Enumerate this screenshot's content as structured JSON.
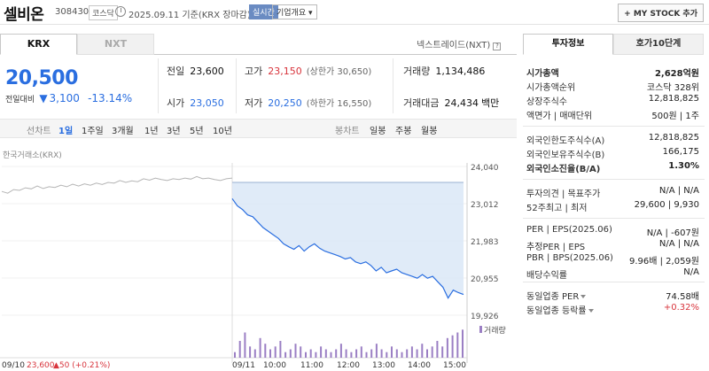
{
  "header": {
    "company": "셀비온",
    "code": "308430",
    "market": "코스닥",
    "date": "2025.09.11 기준(KRX 장마감)",
    "realtime": "실시간",
    "overview": "기업개요 ▾",
    "mystock": "+ MY STOCK 추가"
  },
  "tabs": {
    "krx": "KRX",
    "nxt": "NXT",
    "nxt_info": "넥스트레이드(NXT)"
  },
  "quote": {
    "price": "20,500",
    "change_label": "전일대비",
    "change_arrow": "▼",
    "change_value": "3,100",
    "change_pct": "-13.14%"
  },
  "stats": {
    "prev_label": "전일",
    "prev": "23,600",
    "high_label": "고가",
    "high": "23,150",
    "upper_limit": "(상한가 30,650)",
    "volume_label": "거래량",
    "volume": "1,134,486",
    "open_label": "시가",
    "open": "23,050",
    "low_label": "저가",
    "low": "20,250",
    "lower_limit": "(하한가 16,550)",
    "amount_label": "거래대금",
    "amount": "24,434",
    "amount_unit": "백만"
  },
  "periods": {
    "line_chart": "선차트",
    "items": [
      "1일",
      "1주일",
      "3개월",
      "1년",
      "3년",
      "5년",
      "10년"
    ],
    "candle": "봉차트",
    "candle_items": [
      "일봉",
      "주봉",
      "월봉"
    ]
  },
  "chart_exchange": "한국거래소(KRX)",
  "chart_data": {
    "type": "line",
    "y_ticks": [
      "24,040",
      "23,012",
      "21,983",
      "20,955",
      "19,926"
    ],
    "ylim": [
      19926,
      24040
    ],
    "prev_close": 23600,
    "x_ticks": [
      "09/11",
      "10:00",
      "11:00",
      "12:00",
      "13:00",
      "14:00",
      "15:00"
    ],
    "prev_day_label": "09/10",
    "prev_day_value": "23,600",
    "prev_day_change": "▲50 (+0.21%)",
    "volume_label": "거래량",
    "prev_series": [
      23350,
      23300,
      23400,
      23380,
      23450,
      23420,
      23500,
      23430,
      23480,
      23460,
      23520,
      23480,
      23550,
      23500,
      23560,
      23520,
      23580,
      23540,
      23600,
      23580,
      23650,
      23600,
      23640,
      23620,
      23700,
      23660,
      23720,
      23680,
      23650,
      23700,
      23680,
      23720,
      23690,
      23760,
      23700,
      23720,
      23680,
      23650,
      23700,
      23720
    ],
    "series": [
      23150,
      22950,
      22850,
      22700,
      22650,
      22500,
      22350,
      22250,
      22150,
      22050,
      21900,
      21820,
      21750,
      21850,
      21700,
      21820,
      21900,
      21780,
      21700,
      21650,
      21600,
      21550,
      21480,
      21520,
      21400,
      21350,
      21400,
      21300,
      21150,
      21250,
      21100,
      21150,
      21200,
      21100,
      21050,
      21000,
      20950,
      21050,
      20950,
      21000,
      20850,
      20700,
      20400,
      20620,
      20550,
      20500
    ],
    "volumes": [
      2,
      6,
      9,
      4,
      3,
      7,
      5,
      3,
      4,
      6,
      2,
      3,
      5,
      4,
      2,
      3,
      2,
      4,
      3,
      2,
      3,
      5,
      3,
      2,
      3,
      4,
      2,
      3,
      5,
      3,
      2,
      4,
      3,
      2,
      3,
      4,
      3,
      5,
      3,
      4,
      6,
      4,
      7,
      8,
      9,
      10
    ]
  },
  "right": {
    "tab_active": "투자정보",
    "tab_inactive": "호가10단계",
    "rows1": [
      {
        "k": "시가총액",
        "v": "2,628억원",
        "bold": true
      },
      {
        "k": "시가총액순위",
        "v": "코스닥 328위"
      },
      {
        "k": "상장주식수",
        "v": "12,818,825"
      },
      {
        "k": "액면가 | 매매단위",
        "v": "500원 | 1주"
      }
    ],
    "rows2": [
      {
        "k": "외국인한도주식수(A)",
        "v": "12,818,825"
      },
      {
        "k": "외국인보유주식수(B)",
        "v": "166,175"
      },
      {
        "k": "외국인소진율(B/A)",
        "v": "1.30%",
        "bold": true
      }
    ],
    "rows3": [
      {
        "k": "투자의견 | 목표주가",
        "v": "N/A | N/A"
      },
      {
        "k": "52주최고 | 최저",
        "v": "29,600 | 9,930"
      }
    ],
    "rows4": [
      {
        "k": "PER | EPS(2025.06)",
        "v": "N/A | -607원"
      },
      {
        "k": "추정PER | EPS",
        "v": "N/A | N/A"
      },
      {
        "k": "PBR | BPS(2025.06)",
        "v": "9.96배 | 2,059원"
      },
      {
        "k": "배당수익률",
        "v": "N/A"
      }
    ],
    "rows5": [
      {
        "k": "동일업종 PER",
        "v": "74.58배"
      },
      {
        "k": "동일업종 등락률",
        "v": "+0.32%",
        "color": "#d8343c"
      }
    ]
  }
}
